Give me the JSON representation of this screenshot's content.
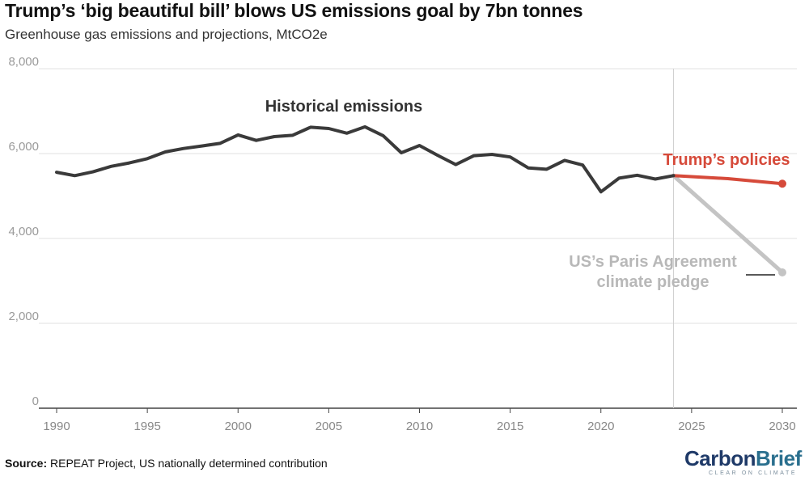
{
  "header": {
    "title": "Trump’s ‘big beautiful bill’ blows US emissions goal by 7bn tonnes",
    "subtitle": "Greenhouse gas emissions and projections, MtCO2e"
  },
  "footer": {
    "source_label": "Source:",
    "source_text": "REPEAT Project, US nationally determined contribution",
    "logo_text_main": "Carbon",
    "logo_text_accent": "Brief",
    "logo_tagline": "CLEAR ON CLIMATE"
  },
  "chart_data": {
    "type": "line",
    "title": "Trump’s ‘big beautiful bill’ blows US emissions goal by 7bn tonnes",
    "subtitle": "Greenhouse gas emissions and projections, MtCO2e",
    "xlim": [
      1990,
      2030
    ],
    "ylim": [
      0,
      8000
    ],
    "x_ticks": [
      1990,
      1995,
      2000,
      2005,
      2010,
      2015,
      2020,
      2025,
      2030
    ],
    "y_ticks": [
      0,
      2000,
      4000,
      6000,
      8000
    ],
    "y_tick_labels": [
      "0",
      "2,000",
      "4,000",
      "6,000",
      "8,000"
    ],
    "x_tick_labels": [
      "1990",
      "1995",
      "2000",
      "2005",
      "2010",
      "2015",
      "2020",
      "2025",
      "2030"
    ],
    "grid": "horizontal",
    "divider_x": 2024,
    "series": [
      {
        "name": "Historical emissions",
        "color": "#3a3a3a",
        "x": [
          1990,
          1991,
          1992,
          1993,
          1994,
          1995,
          1996,
          1997,
          1998,
          1999,
          2000,
          2001,
          2002,
          2003,
          2004,
          2005,
          2006,
          2007,
          2008,
          2009,
          2010,
          2011,
          2012,
          2013,
          2014,
          2015,
          2016,
          2017,
          2018,
          2019,
          2020,
          2021,
          2022,
          2023,
          2024
        ],
        "y": [
          5560,
          5480,
          5570,
          5700,
          5780,
          5880,
          6040,
          6120,
          6180,
          6240,
          6440,
          6310,
          6400,
          6430,
          6620,
          6590,
          6480,
          6630,
          6420,
          6020,
          6190,
          5960,
          5740,
          5950,
          5980,
          5920,
          5660,
          5630,
          5840,
          5730,
          5100,
          5420,
          5490,
          5400,
          5480
        ]
      },
      {
        "name": "Trump’s policies",
        "color": "#d64a3a",
        "x": [
          2024,
          2027,
          2030
        ],
        "y": [
          5480,
          5410,
          5290
        ]
      },
      {
        "name": "US’s Paris Agreement climate pledge",
        "color": "#c4c4c4",
        "x": [
          2024,
          2030
        ],
        "y": [
          5480,
          3200
        ]
      }
    ]
  }
}
